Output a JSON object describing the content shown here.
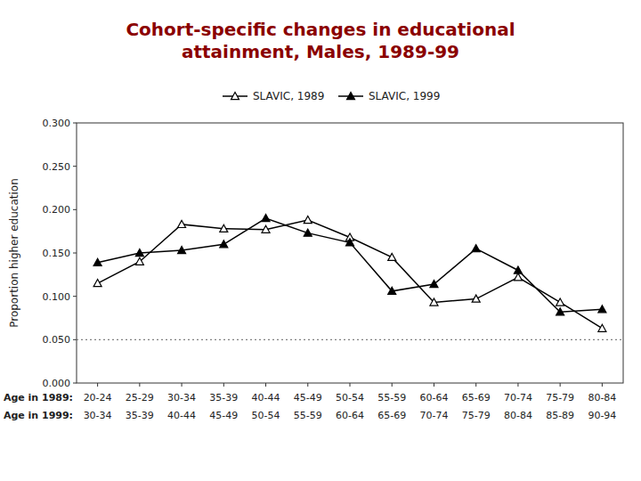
{
  "chart_data": {
    "type": "line",
    "title": "Cohort-specific changes in educational\nattainment, Males, 1989-99",
    "title_color": "#8B0000",
    "ylabel": "Proportion higher education",
    "category_row_labels": [
      "Age in 1989:",
      "Age in 1999:"
    ],
    "categories": [
      "20-24",
      "25-29",
      "30-34",
      "35-39",
      "40-44",
      "45-49",
      "50-54",
      "55-59",
      "60-64",
      "65-69",
      "70-74",
      "75-79",
      "80-84"
    ],
    "categories_row2": [
      "30-34",
      "35-39",
      "40-44",
      "45-49",
      "50-54",
      "55-59",
      "60-64",
      "65-69",
      "70-74",
      "75-79",
      "80-84",
      "85-89",
      "90-94"
    ],
    "series": [
      {
        "name": "SLAVIC, 1989",
        "color": "black",
        "marker": "triangle-open",
        "line_style": "solid",
        "values": [
          0.115,
          0.14,
          0.183,
          0.178,
          0.177,
          0.188,
          0.168,
          0.145,
          0.093,
          0.097,
          0.122,
          0.093,
          0.063
        ]
      },
      {
        "name": "SLAVIC, 1999",
        "color": "black",
        "marker": "triangle",
        "line_style": "solid",
        "values": [
          0.139,
          0.15,
          0.153,
          0.16,
          0.19,
          0.173,
          0.162,
          0.106,
          0.114,
          0.155,
          0.13,
          0.082,
          0.085
        ]
      }
    ],
    "reference_line": 0.05,
    "ylim": [
      0.0,
      0.3
    ],
    "yticks": [
      {
        "value": 0.0,
        "label": "0.000"
      },
      {
        "value": 0.05,
        "label": "0.050"
      },
      {
        "value": 0.1,
        "label": "0.100"
      },
      {
        "value": 0.15,
        "label": "0.150"
      },
      {
        "value": 0.2,
        "label": "0.200"
      },
      {
        "value": 0.25,
        "label": "0.250"
      },
      {
        "value": 0.3,
        "label": "0.300"
      }
    ],
    "grid": false,
    "legend": "top"
  }
}
